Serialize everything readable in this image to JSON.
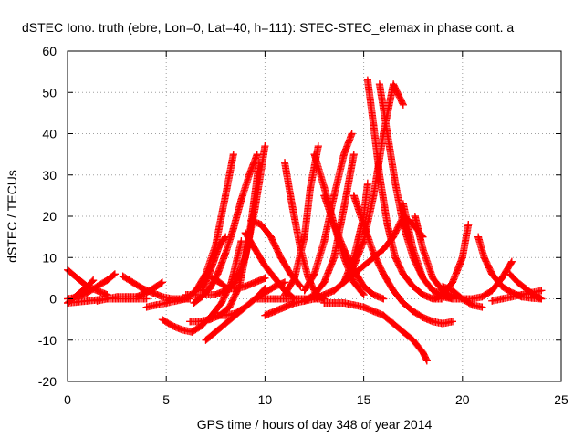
{
  "chart_data": {
    "type": "scatter",
    "title": "dSTEC Iono. truth (ebre, Lon=0, Lat=40, h=111): STEC-STEC_elemax in phase cont. a",
    "xlabel": "GPS time / hours of day 348 of year 2014",
    "ylabel": "dSTEC  / TECUs",
    "xlim": [
      0,
      25
    ],
    "ylim": [
      -20,
      60
    ],
    "xticks": [
      0,
      5,
      10,
      15,
      20,
      25
    ],
    "yticks": [
      -20,
      -10,
      0,
      10,
      20,
      30,
      40,
      50,
      60
    ],
    "xtick_labels": [
      "0",
      "5",
      "10",
      "15",
      "20",
      "25"
    ],
    "ytick_labels": [
      "-20",
      "-10",
      "0",
      "10",
      "20",
      "30",
      "40",
      "50",
      "60"
    ],
    "grid": true,
    "marker": "+",
    "color": "#ff0000",
    "series": [
      {
        "x": [
          0,
          0.5,
          1,
          1.5,
          2
        ],
        "y": [
          7,
          5,
          3,
          2,
          1
        ]
      },
      {
        "x": [
          0,
          0.5,
          1,
          1.3
        ],
        "y": [
          -1,
          1,
          3,
          4.5
        ]
      },
      {
        "x": [
          0,
          0.5,
          1,
          1.5,
          2,
          2.4
        ],
        "y": [
          0,
          0.4,
          1.5,
          3,
          4.5,
          6
        ]
      },
      {
        "x": [
          0,
          1,
          2,
          3,
          4
        ],
        "y": [
          -1,
          -0.5,
          0,
          0,
          0
        ]
      },
      {
        "x": [
          1.5,
          2,
          2.5,
          3,
          3.5,
          4,
          4.5,
          4.8
        ],
        "y": [
          -0.5,
          0,
          0.5,
          0.5,
          0.5,
          1.5,
          3,
          4
        ]
      },
      {
        "x": [
          2.8,
          3.3,
          3.8,
          4.3,
          4.8,
          5.3,
          5.8,
          6.2
        ],
        "y": [
          5.5,
          4,
          2.5,
          1.5,
          0.5,
          0,
          0,
          0
        ]
      },
      {
        "x": [
          4,
          4.5,
          5,
          5.5,
          6,
          6.5,
          7,
          7.5,
          8,
          8.4
        ],
        "y": [
          -2,
          -1.5,
          -1,
          -0.5,
          0,
          2,
          6,
          13,
          25,
          35
        ]
      },
      {
        "x": [
          4.8,
          5.3,
          5.8,
          6.3,
          6.8,
          7.3,
          7.8,
          8.3,
          8.8
        ],
        "y": [
          -5,
          -6.5,
          -7.5,
          -8,
          -6.5,
          -4,
          -1,
          4,
          14
        ]
      },
      {
        "x": [
          6,
          6.5,
          7,
          7.5,
          8,
          8.5,
          9,
          9.5,
          10
        ],
        "y": [
          1,
          1,
          1,
          1,
          2,
          4,
          10,
          22,
          37
        ]
      },
      {
        "x": [
          6.2,
          6.7,
          7.2,
          7.7,
          8.2,
          8.7,
          9.2,
          9.7
        ],
        "y": [
          -5.5,
          -5.5,
          -5,
          -4,
          -2,
          3,
          15,
          33
        ]
      },
      {
        "x": [
          6.4,
          6.8,
          7.2,
          7.6,
          8,
          8.4,
          8.8,
          9.2,
          9.6
        ],
        "y": [
          -1,
          0.5,
          2.5,
          6,
          11,
          17,
          24,
          30,
          35
        ]
      },
      {
        "x": [
          6.8,
          7.1,
          7.4,
          7.7,
          8
        ],
        "y": [
          2,
          5,
          9,
          13,
          15
        ]
      },
      {
        "x": [
          7,
          7.5,
          8,
          8.5,
          9,
          9.5,
          10
        ],
        "y": [
          -10,
          -8,
          -6,
          -4,
          -2,
          0,
          2.5
        ]
      },
      {
        "x": [
          7.6,
          8,
          8.5,
          9,
          9.5,
          10,
          10.5,
          11
        ],
        "y": [
          -4,
          -4,
          -3.5,
          -2,
          0,
          1.5,
          3,
          4
        ]
      },
      {
        "x": [
          7.3,
          7.7,
          8.1,
          8.5,
          9,
          9.5,
          10
        ],
        "y": [
          5,
          4,
          2.5,
          2.5,
          3,
          4,
          5
        ]
      },
      {
        "x": [
          9,
          9.5,
          10,
          10.5,
          11,
          11.5,
          12
        ],
        "y": [
          16,
          12,
          8,
          5,
          2,
          0,
          0
        ]
      },
      {
        "x": [
          9.3,
          9.8,
          10.3,
          10.8,
          11.3,
          11.8
        ],
        "y": [
          19,
          18,
          15,
          10,
          6,
          3
        ]
      },
      {
        "x": [
          9.5,
          10,
          10.5,
          11,
          11.5,
          12,
          12.5,
          13
        ],
        "y": [
          0,
          0,
          0,
          0,
          0,
          0,
          0,
          0
        ]
      },
      {
        "x": [
          10,
          10.5,
          11,
          11.5,
          12,
          12.5,
          13,
          13.5,
          14,
          14.5,
          15,
          15.5,
          16,
          16.5,
          17,
          17.5,
          18
        ],
        "y": [
          -4,
          -3,
          -2,
          -1,
          -0.5,
          0,
          1,
          2,
          4,
          6,
          8,
          10,
          12,
          15,
          20,
          18,
          15
        ]
      },
      {
        "x": [
          11,
          11.4,
          11.8,
          12.2,
          12.6,
          13
        ],
        "y": [
          33,
          22,
          12,
          5,
          1,
          0
        ]
      },
      {
        "x": [
          11,
          11.5,
          12,
          12.3,
          12.7
        ],
        "y": [
          1,
          5,
          15,
          27,
          37
        ]
      },
      {
        "x": [
          11.5,
          12,
          12.5,
          13,
          13.5,
          14,
          14.5
        ],
        "y": [
          -1,
          -0.5,
          1,
          4,
          10,
          22,
          35
        ]
      },
      {
        "x": [
          12,
          12.5,
          13,
          13.5,
          14,
          14.4
        ],
        "y": [
          2,
          6,
          14,
          25,
          35,
          40
        ]
      },
      {
        "x": [
          12.5,
          13,
          13.5,
          14,
          14.5,
          15
        ],
        "y": [
          35,
          27,
          18,
          10,
          4,
          1
        ]
      },
      {
        "x": [
          13,
          13.5,
          14,
          14.5,
          15,
          15.5,
          16
        ],
        "y": [
          25,
          18,
          12,
          7,
          3,
          1,
          0
        ]
      },
      {
        "x": [
          13,
          13.5,
          14,
          14.5,
          15,
          15.5,
          16,
          16.5,
          17,
          17.5,
          18,
          18.2
        ],
        "y": [
          -1,
          -1,
          -1,
          -1.5,
          -2,
          -3,
          -4,
          -6,
          -8,
          -10,
          -13,
          -15
        ]
      },
      {
        "x": [
          13.5,
          14,
          14.5,
          15,
          15.5,
          16,
          16.5,
          17
        ],
        "y": [
          2,
          4,
          8,
          14,
          25,
          40,
          52,
          47
        ]
      },
      {
        "x": [
          14,
          14.5,
          15,
          15.2
        ],
        "y": [
          4,
          10,
          20,
          28
        ]
      },
      {
        "x": [
          14.5,
          15,
          15.5,
          16,
          16.5,
          17,
          17.5,
          18,
          18.5,
          19,
          19.5
        ],
        "y": [
          25,
          18,
          11,
          6,
          2,
          -1,
          -3,
          -4.5,
          -5.5,
          -6,
          -5.5
        ]
      },
      {
        "x": [
          15.2,
          15.5,
          15.8,
          16.2,
          16.6,
          17,
          17.5,
          18,
          18.5,
          19
        ],
        "y": [
          53,
          42,
          30,
          18,
          10,
          6,
          3,
          1,
          0,
          0
        ]
      },
      {
        "x": [
          15.8,
          16.2,
          16.6,
          17,
          17.5,
          18,
          18.5,
          19,
          19.5,
          20
        ],
        "y": [
          52,
          40,
          28,
          18,
          10,
          5,
          2,
          0.5,
          0,
          0
        ]
      },
      {
        "x": [
          17,
          17.5,
          18,
          18.5,
          19,
          19.5
        ],
        "y": [
          23,
          12,
          5,
          2,
          1,
          0
        ]
      },
      {
        "x": [
          17.6,
          18,
          18.5,
          19,
          19.5,
          20,
          20.5,
          21,
          21.5,
          22,
          22.5
        ],
        "y": [
          20,
          12,
          5,
          2,
          0.5,
          0,
          0,
          0.5,
          2,
          5,
          9
        ]
      },
      {
        "x": [
          18.5,
          19,
          19.5,
          20,
          20.3
        ],
        "y": [
          0,
          1,
          4,
          10,
          18
        ]
      },
      {
        "x": [
          19,
          19.5,
          20,
          20.5,
          21
        ],
        "y": [
          3,
          2,
          0,
          -1.5,
          -2
        ]
      },
      {
        "x": [
          20.8,
          21.1,
          21.5,
          22,
          22.5,
          23,
          23.5,
          24
        ],
        "y": [
          15,
          10,
          6,
          3,
          1.5,
          0.5,
          0.2,
          0
        ]
      },
      {
        "x": [
          21.5,
          22,
          22.5,
          23,
          23.5,
          24
        ],
        "y": [
          -0.5,
          0,
          0.5,
          1,
          1.5,
          2
        ]
      },
      {
        "x": [
          22.4,
          22.8,
          23.2,
          23.6,
          24
        ],
        "y": [
          6,
          4,
          2.5,
          1,
          0
        ]
      }
    ]
  }
}
